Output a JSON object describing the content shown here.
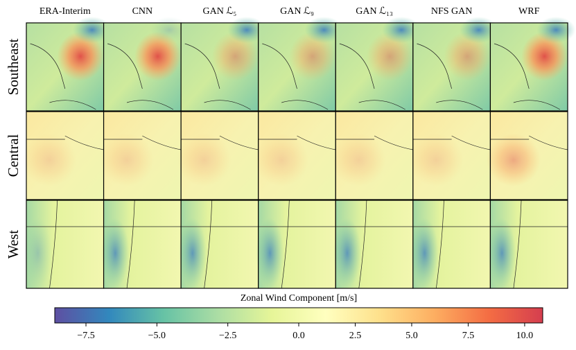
{
  "chart_data": {
    "type": "image-grid",
    "columns": [
      "ERA-Interim",
      "CNN",
      "GAN ℒ₅",
      "GAN ℒ₉",
      "GAN ℒ₁₃",
      "NFS GAN",
      "WRF"
    ],
    "rows": [
      "Southeast",
      "Central",
      "West"
    ],
    "colorbar": {
      "label": "Zonal Wind Component [m/s]",
      "clim": [
        -8.6,
        10.8
      ],
      "center": 0,
      "ticks": [
        {
          "value": -7.5,
          "label": "−7.5"
        },
        {
          "value": -5,
          "label": "−5.0"
        },
        {
          "value": -2.5,
          "label": "−2.5"
        },
        {
          "value": 0,
          "label": "0.0"
        },
        2.5,
        {
          "value": 5,
          "label": "5.0"
        },
        {
          "value": 7.5,
          "label": "7.5"
        },
        {
          "value": 10,
          "label": "10.0"
        }
      ],
      "colormap": [
        "#5e4fa2",
        "#3288bd",
        "#66c2a5",
        "#abdda4",
        "#e6f598",
        "#ffffbf",
        "#fee08b",
        "#fdae61",
        "#f46d43",
        "#d53e4f"
      ]
    }
  }
}
